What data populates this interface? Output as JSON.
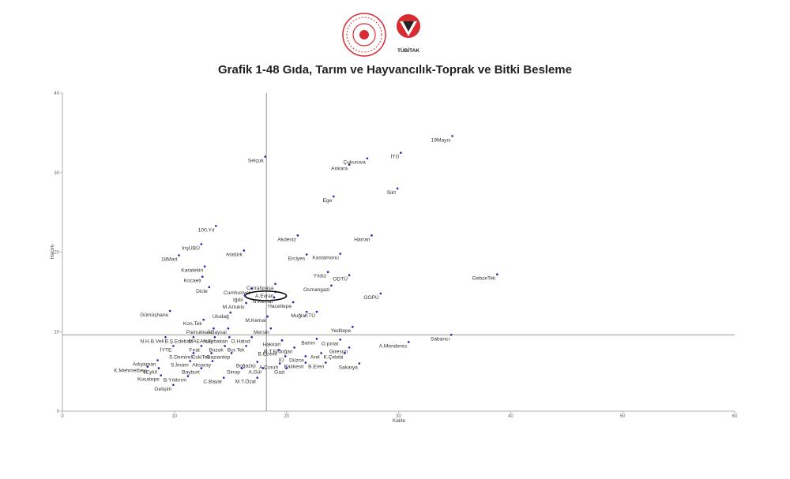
{
  "logos": {
    "left_name": "ministry-emblem",
    "right_name": "tubitak-logo",
    "right_text": "TÜBİTAK",
    "left_color": "#d62c32",
    "right_color": "#d62c32"
  },
  "chart_data": {
    "type": "scatter",
    "title": "Grafik 1-48 Gıda, Tarım ve Hayvancılık-Toprak ve Bitki Besleme",
    "xlabel": "Kalite",
    "ylabel": "Hacim",
    "xlim": [
      0,
      60
    ],
    "ylim": [
      0,
      40
    ],
    "xticks": [
      0,
      10,
      20,
      30,
      40,
      50,
      60
    ],
    "yticks": [
      0,
      10,
      20,
      30,
      40
    ],
    "reference_lines": {
      "x": 18.2,
      "y": 9.6
    },
    "highlighted": "A.Evran",
    "point_color": "#2222aa",
    "highlight_color": "#000000",
    "points": [
      {
        "label": "19Mayıs",
        "x": 34.8,
        "y": 34.6
      },
      {
        "label": "İTÜ",
        "x": 30.2,
        "y": 32.5
      },
      {
        "label": "Çukurova",
        "x": 27.2,
        "y": 31.8
      },
      {
        "label": "Ankara",
        "x": 25.6,
        "y": 31.0
      },
      {
        "label": "Selçuk",
        "x": 18.1,
        "y": 32.0
      },
      {
        "label": "Siirt",
        "x": 29.9,
        "y": 28.0
      },
      {
        "label": "Ege",
        "x": 24.2,
        "y": 27.0
      },
      {
        "label": "Harran",
        "x": 27.6,
        "y": 22.1
      },
      {
        "label": "Akdeniz",
        "x": 21.0,
        "y": 22.1
      },
      {
        "label": "Kastamonu",
        "x": 24.8,
        "y": 19.8
      },
      {
        "label": "Erciyes",
        "x": 21.8,
        "y": 19.7
      },
      {
        "label": "100.Yıl",
        "x": 13.7,
        "y": 23.3
      },
      {
        "label": "İnşÜBÜ",
        "x": 12.4,
        "y": 21.0
      },
      {
        "label": "Atatürk",
        "x": 16.2,
        "y": 20.2
      },
      {
        "label": "18Mart",
        "x": 10.4,
        "y": 19.6
      },
      {
        "label": "Karatekin",
        "x": 12.7,
        "y": 18.2
      },
      {
        "label": "Kocaeli",
        "x": 12.5,
        "y": 16.9
      },
      {
        "label": "Dicle",
        "x": 13.1,
        "y": 15.6
      },
      {
        "label": "GebzeTek",
        "x": 38.8,
        "y": 17.2
      },
      {
        "label": "ODTÜ",
        "x": 25.6,
        "y": 17.1
      },
      {
        "label": "Yıldız",
        "x": 23.7,
        "y": 17.5
      },
      {
        "label": "Cerrahpaşa",
        "x": 19.0,
        "y": 16.0
      },
      {
        "label": "Osmangazi",
        "x": 24.0,
        "y": 15.8
      },
      {
        "label": "Cumhuriyet",
        "x": 16.9,
        "y": 15.4
      },
      {
        "label": "A.Evran",
        "x": 19.0,
        "y": 15.0
      },
      {
        "label": "N.Kemal",
        "x": 18.9,
        "y": 14.3
      },
      {
        "label": "GOPÜ",
        "x": 28.4,
        "y": 14.8
      },
      {
        "label": "Iğdır",
        "x": 16.3,
        "y": 14.5
      },
      {
        "label": "Gümüşhane",
        "x": 9.6,
        "y": 12.6
      },
      {
        "label": "M.Artuklu",
        "x": 16.4,
        "y": 13.6
      },
      {
        "label": "Hacettepe",
        "x": 20.6,
        "y": 13.7
      },
      {
        "label": "KTÜ",
        "x": 22.7,
        "y": 12.5
      },
      {
        "label": "Muğla",
        "x": 21.8,
        "y": 12.5
      },
      {
        "label": "Uludağ",
        "x": 15.0,
        "y": 12.4
      },
      {
        "label": "Kon.Tek",
        "x": 12.6,
        "y": 11.5
      },
      {
        "label": "M.Kemal",
        "x": 18.3,
        "y": 11.9
      },
      {
        "label": "Pamukkale",
        "x": 13.5,
        "y": 10.4
      },
      {
        "label": "İ.Baysal",
        "x": 14.8,
        "y": 10.4
      },
      {
        "label": "Mersin",
        "x": 18.6,
        "y": 10.4
      },
      {
        "label": "Yeditepe",
        "x": 25.9,
        "y": 10.6
      },
      {
        "label": "Sabancı",
        "x": 34.7,
        "y": 9.6
      },
      {
        "label": "N.H.B.Veli",
        "x": 9.2,
        "y": 9.3
      },
      {
        "label": "B.Ş.Edebali",
        "x": 11.7,
        "y": 9.3
      },
      {
        "label": "MAEArsoy",
        "x": 13.6,
        "y": 9.3
      },
      {
        "label": "N.Erbakan",
        "x": 14.9,
        "y": 9.3
      },
      {
        "label": "O.Hatsd",
        "x": 16.9,
        "y": 9.3
      },
      {
        "label": "Hakkari",
        "x": 19.6,
        "y": 8.9
      },
      {
        "label": "Bartın",
        "x": 22.7,
        "y": 9.1
      },
      {
        "label": "O.pınar",
        "x": 24.8,
        "y": 9.0
      },
      {
        "label": "A.Menderes",
        "x": 30.9,
        "y": 8.7
      },
      {
        "label": "İYTE",
        "x": 9.9,
        "y": 8.2
      },
      {
        "label": "Fırat",
        "x": 12.4,
        "y": 8.2
      },
      {
        "label": "Bozok",
        "x": 14.5,
        "y": 8.2
      },
      {
        "label": "Bur.Tek",
        "x": 16.4,
        "y": 8.2
      },
      {
        "label": "R.T.Erdoğan",
        "x": 20.7,
        "y": 8.0
      },
      {
        "label": "Giresun",
        "x": 25.6,
        "y": 8.0
      },
      {
        "label": "B.Ecevit",
        "x": 19.3,
        "y": 7.7
      },
      {
        "label": "S.Demirel",
        "x": 11.7,
        "y": 7.3
      },
      {
        "label": "EskiTek",
        "x": 13.3,
        "y": 7.3
      },
      {
        "label": "Gaziantep",
        "x": 15.1,
        "y": 7.3
      },
      {
        "label": "Arel",
        "x": 23.1,
        "y": 7.3
      },
      {
        "label": "K.Çelebi",
        "x": 25.2,
        "y": 7.3
      },
      {
        "label": "İÜ",
        "x": 19.9,
        "y": 6.9
      },
      {
        "label": "Düzce",
        "x": 21.7,
        "y": 6.9
      },
      {
        "label": "Adıyaman",
        "x": 8.5,
        "y": 6.4
      },
      {
        "label": "S.İmam",
        "x": 11.4,
        "y": 6.3
      },
      {
        "label": "Aksaray",
        "x": 13.4,
        "y": 6.3
      },
      {
        "label": "Boğaziçi",
        "x": 17.4,
        "y": 6.2
      },
      {
        "label": "A.Çoruh",
        "x": 19.4,
        "y": 6.0
      },
      {
        "label": "Balıkesir",
        "x": 21.7,
        "y": 6.1
      },
      {
        "label": "B.Eren",
        "x": 23.5,
        "y": 6.1
      },
      {
        "label": "Sakarya",
        "x": 26.5,
        "y": 6.0
      },
      {
        "label": "K.Mehmetbey",
        "x": 7.6,
        "y": 5.6
      },
      {
        "label": "9Eylül",
        "x": 8.6,
        "y": 5.4
      },
      {
        "label": "Bayburt",
        "x": 12.4,
        "y": 5.4
      },
      {
        "label": "Sinop",
        "x": 16.0,
        "y": 5.4
      },
      {
        "label": "A.Gül",
        "x": 17.9,
        "y": 5.4
      },
      {
        "label": "Gazi",
        "x": 20.0,
        "y": 5.4
      },
      {
        "label": "Kocatepe",
        "x": 8.8,
        "y": 4.5
      },
      {
        "label": "B.Yıldırım",
        "x": 11.2,
        "y": 4.4
      },
      {
        "label": "C.Bayar",
        "x": 14.4,
        "y": 4.2
      },
      {
        "label": "M.T.Özal",
        "x": 17.4,
        "y": 4.2
      },
      {
        "label": "Gelişim",
        "x": 9.9,
        "y": 3.3
      }
    ]
  }
}
